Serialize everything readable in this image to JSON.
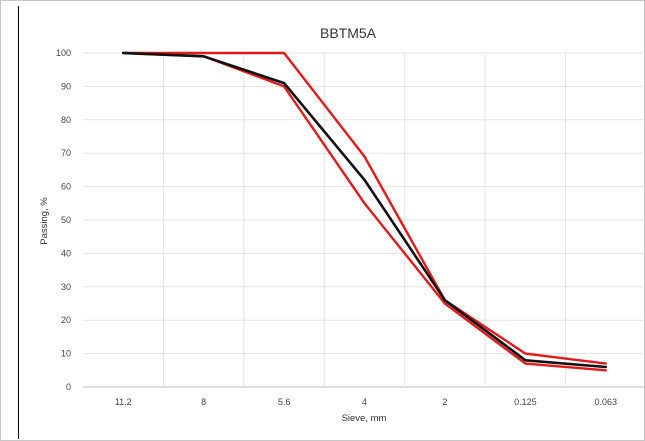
{
  "chart_data": {
    "type": "line",
    "title": "BBTM5A",
    "xlabel": "Sieve, mm",
    "ylabel": "Passing, %",
    "categories": [
      "11.2",
      "8",
      "5.6",
      "4",
      "2",
      "0.125",
      "0.063"
    ],
    "ylim": [
      0,
      100
    ],
    "yticks": [
      0,
      10,
      20,
      30,
      40,
      50,
      60,
      70,
      80,
      90,
      100
    ],
    "grid": true,
    "legend": "none",
    "series": [
      {
        "color": "#e31a1a",
        "values": [
          100,
          100,
          100,
          69,
          26,
          10,
          7
        ]
      },
      {
        "color": "#e31a1a",
        "values": [
          100,
          99,
          90,
          55,
          25,
          7,
          5
        ]
      },
      {
        "color": "#111111",
        "values": [
          100,
          99,
          91,
          62,
          26,
          8,
          6
        ]
      }
    ]
  }
}
